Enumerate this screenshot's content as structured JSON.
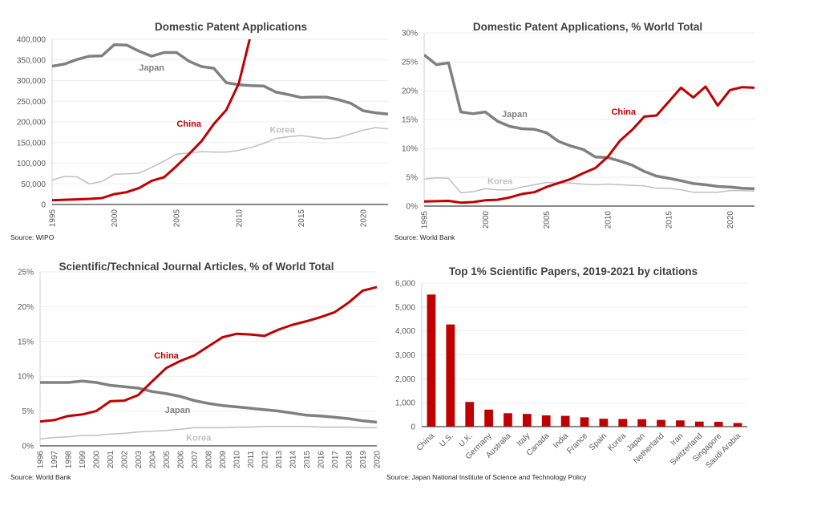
{
  "chart_data": [
    {
      "type": "line",
      "title": "Domestic Patent Applications",
      "source": "Source: WIPO",
      "xlim": [
        1995,
        2022
      ],
      "x_ticks": [
        1995,
        2000,
        2005,
        2010,
        2015,
        2020
      ],
      "ylim": [
        0,
        400000
      ],
      "y_ticks": [
        {
          "value": 0,
          "label": "0"
        },
        {
          "value": 50000,
          "label": "50,000"
        },
        {
          "value": 100000,
          "label": "100,000"
        },
        {
          "value": 150000,
          "label": "150,000"
        },
        {
          "value": 200000,
          "label": "200,000"
        },
        {
          "value": 250000,
          "label": "250,000"
        },
        {
          "value": 300000,
          "label": "300,000"
        },
        {
          "value": 350000,
          "label": "350,000"
        },
        {
          "value": 400000,
          "label": "400,000"
        }
      ],
      "grid": true,
      "series": [
        {
          "name": "Korea",
          "color": "#bfbfbf",
          "start": 1995,
          "values": [
            59000,
            68000,
            67000,
            50000,
            56000,
            73000,
            74000,
            76000,
            90000,
            105000,
            122000,
            125000,
            128000,
            127000,
            127000,
            131000,
            138000,
            148000,
            160000,
            164000,
            167000,
            163000,
            159000,
            162000,
            171000,
            180000,
            186000,
            183000
          ],
          "label": {
            "text": "Korea",
            "x": 2013.5,
            "y": 182000
          }
        },
        {
          "name": "Japan",
          "color": "#808080",
          "start": 1995,
          "values": [
            335000,
            340000,
            351000,
            359000,
            360000,
            387000,
            386000,
            371000,
            359000,
            368000,
            368000,
            347000,
            334000,
            330000,
            295000,
            290000,
            288000,
            287000,
            272000,
            266000,
            259000,
            260000,
            260000,
            254000,
            245000,
            227000,
            222000,
            219000
          ],
          "label": {
            "text": "Japan",
            "x": 2003,
            "y": 332000
          }
        },
        {
          "name": "China",
          "color": "#c00000",
          "start": 1995,
          "values": [
            10000,
            11500,
            12500,
            13500,
            15500,
            25000,
            30000,
            40000,
            57000,
            66000,
            93000,
            122000,
            153000,
            195000,
            229000,
            293000,
            415000
          ],
          "label": {
            "text": "China",
            "x": 2006,
            "y": 196000
          }
        }
      ]
    },
    {
      "type": "line",
      "title": "Domestic Patent Applications, % World Total",
      "source": "Source: World Bank",
      "xlim": [
        1995,
        2022
      ],
      "x_ticks": [
        1995,
        2000,
        2005,
        2010,
        2015,
        2020
      ],
      "ylim": [
        0,
        30
      ],
      "y_ticks": [
        {
          "value": 0,
          "label": "0%"
        },
        {
          "value": 5,
          "label": "5%"
        },
        {
          "value": 10,
          "label": "10%"
        },
        {
          "value": 15,
          "label": "15%"
        },
        {
          "value": 20,
          "label": "20%"
        },
        {
          "value": 25,
          "label": "25%"
        },
        {
          "value": 30,
          "label": "30%"
        }
      ],
      "grid": true,
      "series": [
        {
          "name": "Korea",
          "color": "#bfbfbf",
          "start": 1995,
          "values": [
            4.7,
            4.9,
            4.8,
            2.3,
            2.5,
            3.0,
            2.8,
            2.8,
            3.3,
            3.7,
            4.1,
            4.0,
            4.0,
            3.8,
            3.7,
            3.8,
            3.7,
            3.6,
            3.5,
            3.1,
            3.1,
            2.8,
            2.4,
            2.4,
            2.4,
            2.7,
            2.7,
            2.6
          ],
          "label": {
            "text": "Korea",
            "x": 2001.2,
            "y": 4.4
          }
        },
        {
          "name": "Japan",
          "color": "#808080",
          "start": 1995,
          "values": [
            26.2,
            24.5,
            24.8,
            16.3,
            16.0,
            16.3,
            14.7,
            13.8,
            13.4,
            13.3,
            12.7,
            11.2,
            10.4,
            9.8,
            8.5,
            8.4,
            7.8,
            7.1,
            6.0,
            5.2,
            4.8,
            4.4,
            3.9,
            3.7,
            3.4,
            3.3,
            3.1,
            3.0
          ],
          "label": {
            "text": "Japan",
            "x": 2002.4,
            "y": 16
          }
        },
        {
          "name": "China",
          "color": "#c00000",
          "start": 1995,
          "values": [
            0.8,
            0.85,
            0.9,
            0.6,
            0.7,
            1.0,
            1.1,
            1.5,
            2.1,
            2.4,
            3.3,
            4.0,
            4.7,
            5.7,
            6.6,
            8.5,
            11.3,
            13.2,
            15.5,
            15.7,
            18.1,
            20.5,
            18.8,
            20.7,
            17.4,
            20.1,
            20.6,
            20.5
          ],
          "label": {
            "text": "China",
            "x": 2011.3,
            "y": 16.4
          }
        }
      ]
    },
    {
      "type": "line",
      "title": "Scientific/Technical Journal Articles, % of World Total",
      "source": "Source: World Bank",
      "xlim": [
        1996,
        2020
      ],
      "x_ticks": [
        1996,
        1997,
        1998,
        1999,
        2000,
        2001,
        2002,
        2003,
        2004,
        2005,
        2006,
        2007,
        2008,
        2009,
        2010,
        2011,
        2012,
        2013,
        2014,
        2015,
        2016,
        2017,
        2018,
        2019,
        2020
      ],
      "ylim": [
        0,
        25
      ],
      "y_ticks": [
        {
          "value": 0,
          "label": "0%"
        },
        {
          "value": 5,
          "label": "5%"
        },
        {
          "value": 10,
          "label": "10%"
        },
        {
          "value": 15,
          "label": "15%"
        },
        {
          "value": 20,
          "label": "20%"
        },
        {
          "value": 25,
          "label": "25%"
        }
      ],
      "grid": true,
      "series": [
        {
          "name": "Korea",
          "color": "#bfbfbf",
          "start": 1996,
          "values": [
            1.0,
            1.2,
            1.3,
            1.5,
            1.5,
            1.7,
            1.8,
            2.0,
            2.1,
            2.2,
            2.4,
            2.6,
            2.6,
            2.6,
            2.7,
            2.7,
            2.8,
            2.8,
            2.8,
            2.8,
            2.7,
            2.7,
            2.7,
            2.6,
            2.6
          ],
          "label": {
            "text": "Korea",
            "x": 2007.3,
            "y": 1.2
          }
        },
        {
          "name": "Japan",
          "color": "#808080",
          "start": 1996,
          "values": [
            9.1,
            9.1,
            9.1,
            9.3,
            9.1,
            8.7,
            8.5,
            8.3,
            7.8,
            7.5,
            7.1,
            6.5,
            6.1,
            5.8,
            5.6,
            5.4,
            5.2,
            5.0,
            4.7,
            4.4,
            4.3,
            4.1,
            3.9,
            3.6,
            3.4
          ],
          "label": {
            "text": "Japan",
            "x": 2005.8,
            "y": 5.2
          }
        },
        {
          "name": "China",
          "color": "#c00000",
          "start": 1996,
          "values": [
            3.5,
            3.7,
            4.3,
            4.5,
            5.0,
            6.4,
            6.5,
            7.3,
            9.3,
            11.2,
            12.2,
            13.0,
            14.3,
            15.6,
            16.1,
            16.0,
            15.8,
            16.7,
            17.4,
            17.9,
            18.5,
            19.2,
            20.6,
            22.3,
            22.8
          ],
          "label": {
            "text": "China",
            "x": 2005,
            "y": 13
          }
        }
      ]
    },
    {
      "type": "bar",
      "title": "Top 1% Scientific Papers, 2019-2021 by citations",
      "source": "Source: Japan National Institute of Science and Technology Policy",
      "ylim": [
        0,
        6000
      ],
      "y_ticks": [
        {
          "value": 0,
          "label": "0"
        },
        {
          "value": 1000,
          "label": "1,000"
        },
        {
          "value": 2000,
          "label": "2,000"
        },
        {
          "value": 3000,
          "label": "3,000"
        },
        {
          "value": 4000,
          "label": "4,000"
        },
        {
          "value": 5000,
          "label": "5,000"
        },
        {
          "value": 6000,
          "label": "6,000"
        }
      ],
      "grid": true,
      "color": "#c00000",
      "categories": [
        "China",
        "U.S.",
        "U.K.",
        "Germany",
        "Australia",
        "Italy",
        "Canada",
        "India",
        "France",
        "Spain",
        "Korea",
        "Japan",
        "Netherland",
        "Iran",
        "Switzerland",
        "Singapore",
        "Saudi Arabia"
      ],
      "values": [
        5520,
        4270,
        1030,
        710,
        560,
        530,
        470,
        450,
        390,
        330,
        320,
        310,
        280,
        260,
        210,
        200,
        150
      ]
    }
  ]
}
